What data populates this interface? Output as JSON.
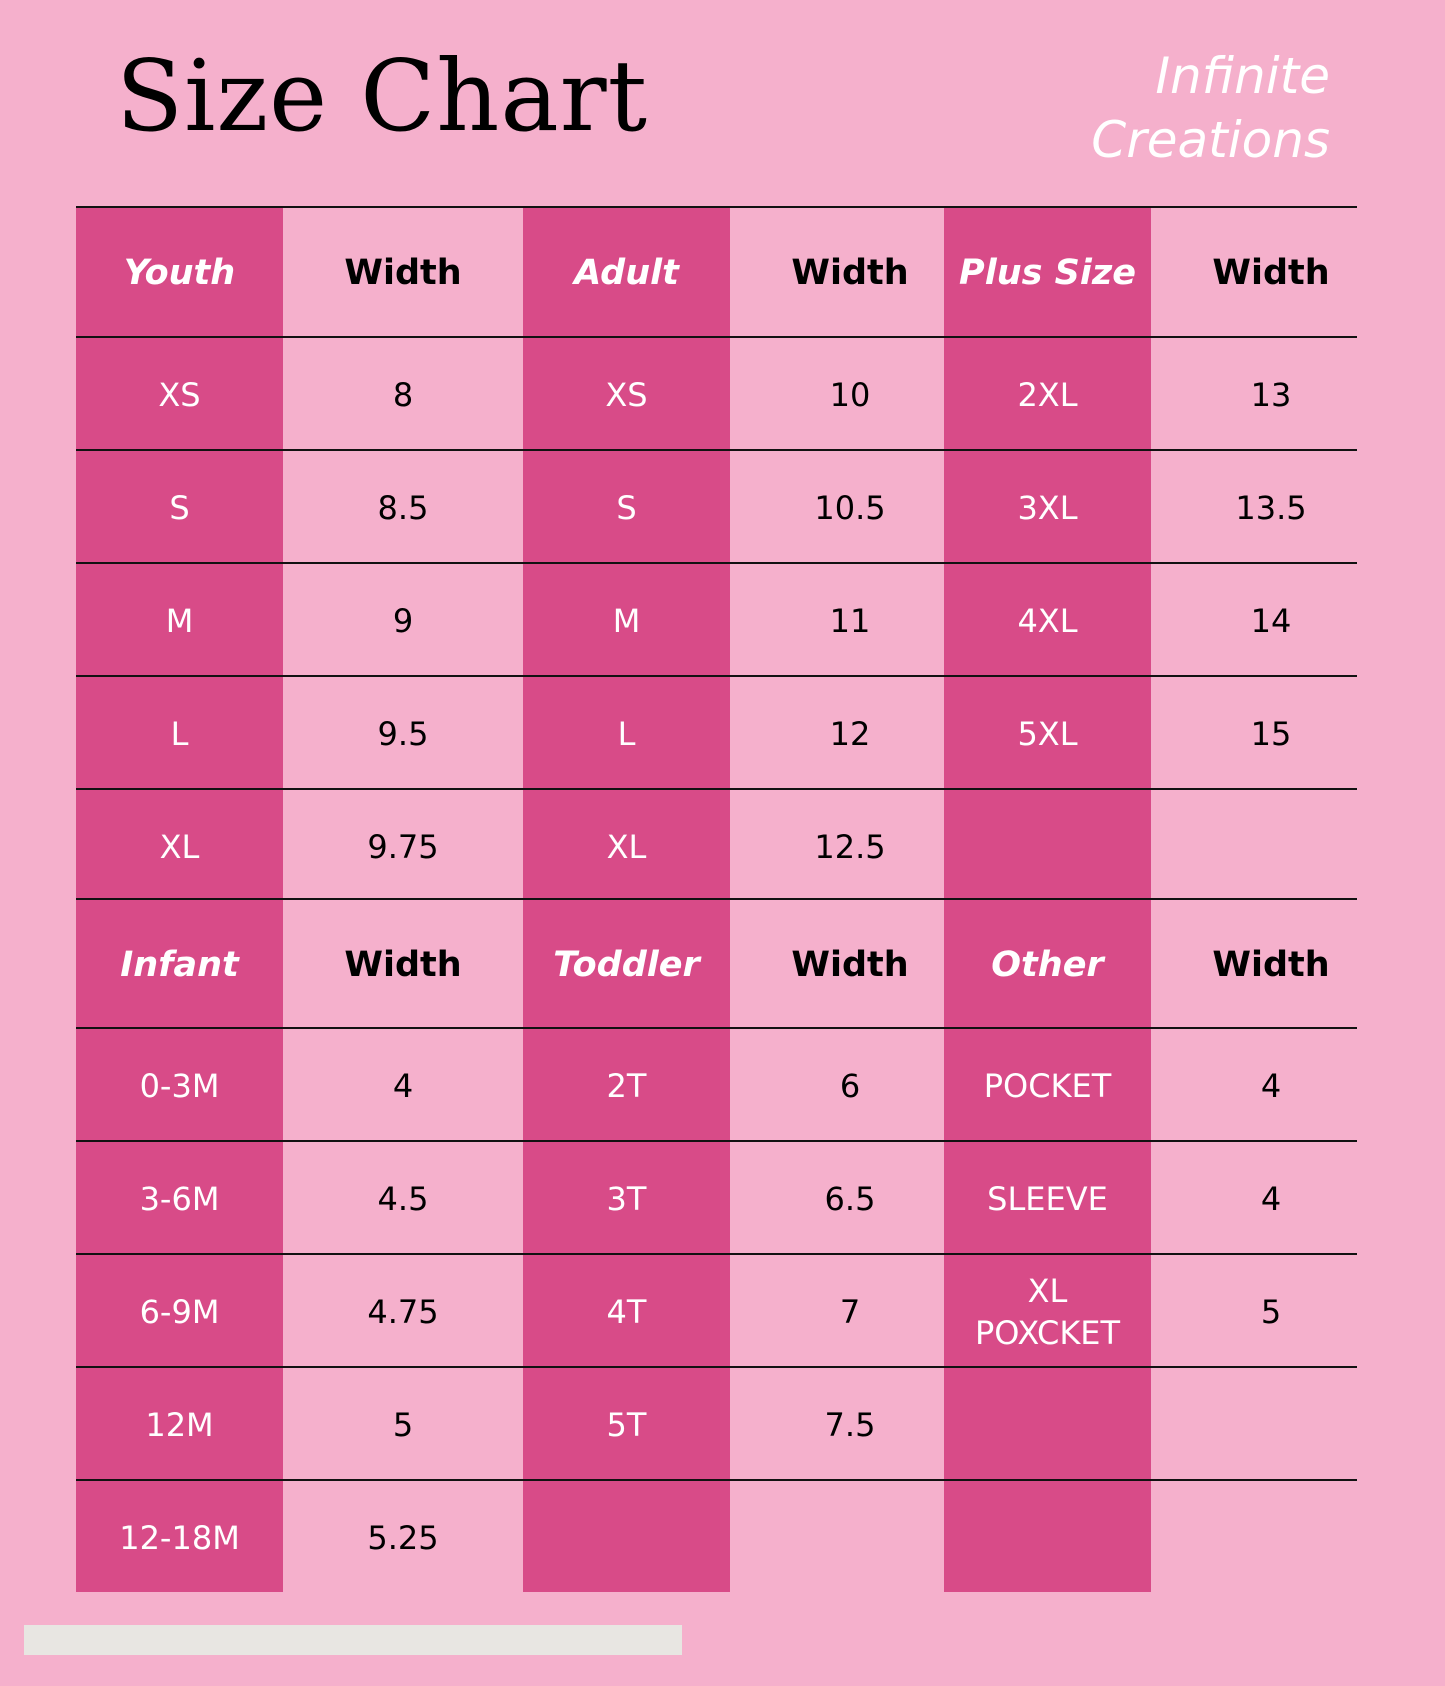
{
  "title": "Size Chart",
  "brand": {
    "line1": "Infinite",
    "line2": "Creations"
  },
  "colors": {
    "background": "#f5b0cc",
    "accent": "#d84b88",
    "footer_bar": "#e8e6e2"
  },
  "sections": [
    {
      "groups": [
        {
          "label": "Youth",
          "width_label": "Width",
          "rows": [
            [
              "XS",
              "8"
            ],
            [
              "S",
              "8.5"
            ],
            [
              "M",
              "9"
            ],
            [
              "L",
              "9.5"
            ],
            [
              "XL",
              "9.75"
            ]
          ]
        },
        {
          "label": "Adult",
          "width_label": "Width",
          "rows": [
            [
              "XS",
              "10"
            ],
            [
              "S",
              "10.5"
            ],
            [
              "M",
              "11"
            ],
            [
              "L",
              "12"
            ],
            [
              "XL",
              "12.5"
            ]
          ]
        },
        {
          "label": "Plus Size",
          "width_label": "Width",
          "rows": [
            [
              "2XL",
              "13"
            ],
            [
              "3XL",
              "13.5"
            ],
            [
              "4XL",
              "14"
            ],
            [
              "5XL",
              "15"
            ],
            [
              "",
              ""
            ]
          ]
        }
      ]
    },
    {
      "groups": [
        {
          "label": "Infant",
          "width_label": "Width",
          "rows": [
            [
              "0-3M",
              "4"
            ],
            [
              "3-6M",
              "4.5"
            ],
            [
              "6-9M",
              "4.75"
            ],
            [
              "12M",
              "5"
            ],
            [
              "12-18M",
              "5.25"
            ]
          ]
        },
        {
          "label": "Toddler",
          "width_label": "Width",
          "rows": [
            [
              "2T",
              "6"
            ],
            [
              "3T",
              "6.5"
            ],
            [
              "4T",
              "7"
            ],
            [
              "5T",
              "7.5"
            ],
            [
              "",
              ""
            ]
          ]
        },
        {
          "label": "Other",
          "width_label": "Width",
          "rows": [
            [
              "POCKET",
              "4"
            ],
            [
              "SLEEVE",
              "4"
            ],
            [
              "XL POXCKET",
              "5"
            ],
            [
              "",
              ""
            ],
            [
              "",
              ""
            ]
          ]
        }
      ]
    }
  ]
}
